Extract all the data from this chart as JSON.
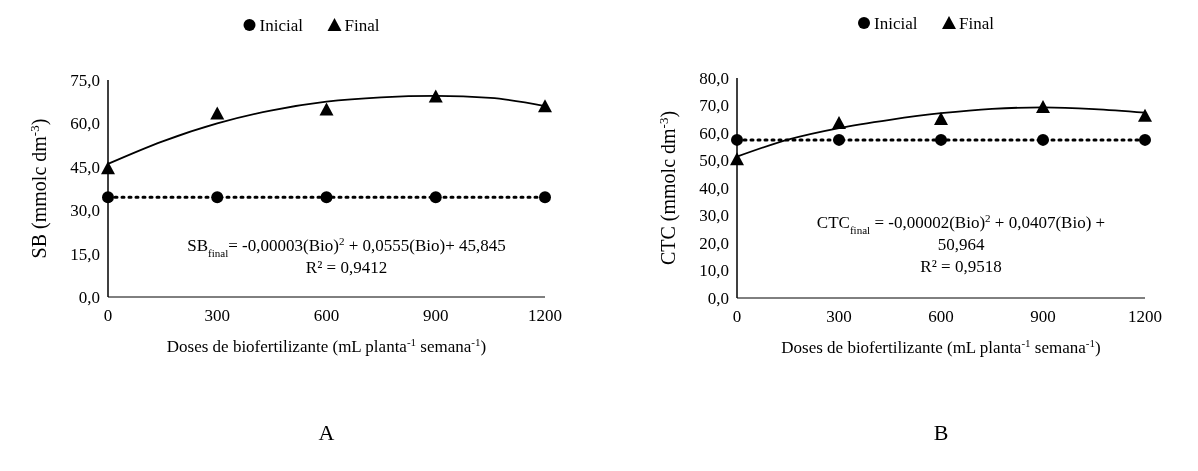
{
  "chart_data": [
    {
      "type": "line",
      "xlabel": "Doses de biofertilizante (mL planta$^{-1}$ semana$^{-1}$)",
      "ylabel": "SB (mmolc dm$^{-3}$)",
      "x": [
        0,
        300,
        600,
        900,
        1200
      ],
      "xlim": [
        0,
        1200
      ],
      "xticks": [
        0,
        300,
        600,
        900,
        1200
      ],
      "ylim": [
        0,
        75
      ],
      "yticks": [
        {
          "value": 0,
          "label": "0,0"
        },
        {
          "value": 15,
          "label": "15,0"
        },
        {
          "value": 30,
          "label": "30,0"
        },
        {
          "value": 45,
          "label": "45,0"
        },
        {
          "value": 60,
          "label": "60,0"
        },
        {
          "value": 75,
          "label": "75,0"
        }
      ],
      "grid": false,
      "legend": "top",
      "series": [
        {
          "name": "Inicial",
          "color": "#000000",
          "marker": "circle",
          "line_style": "dotted",
          "values": [
            34.5,
            34.5,
            34.5,
            34.5,
            34.5
          ]
        },
        {
          "name": "Final",
          "type": "scatter",
          "color": "#000000",
          "marker": "triangle",
          "values": [
            44.5,
            63.4,
            64.8,
            69.3,
            65.9
          ]
        },
        {
          "type": "line",
          "color": "#000000",
          "marker": "none",
          "line_style": "solid",
          "x": [
            0,
            150,
            300,
            450,
            600,
            750,
            900,
            1050,
            1200
          ],
          "values": [
            46,
            53.8,
            60,
            64.5,
            67.5,
            69,
            69.5,
            68.8,
            66
          ]
        }
      ],
      "annotations": [
        "SB$_{final}$= -0,00003(Bio)$^{2}$ + 0,0555(Bio)+ 45,845",
        "R² = 0,9412",
        "A"
      ]
    },
    {
      "type": "line",
      "xlabel": "Doses de biofertilizante (mL planta$^{-1}$ semana$^{-1}$)",
      "ylabel": "CTC (mmolc dm$^{-3}$)",
      "x": [
        0,
        300,
        600,
        900,
        1200
      ],
      "xlim": [
        0,
        1200
      ],
      "xticks": [
        0,
        300,
        600,
        900,
        1200
      ],
      "ylim": [
        0,
        80
      ],
      "yticks": [
        {
          "value": 0,
          "label": "0,0"
        },
        {
          "value": 10,
          "label": "10,0"
        },
        {
          "value": 20,
          "label": "20,0"
        },
        {
          "value": 30,
          "label": "30,0"
        },
        {
          "value": 40,
          "label": "40,0"
        },
        {
          "value": 50,
          "label": "50,0"
        },
        {
          "value": 60,
          "label": "60,0"
        },
        {
          "value": 70,
          "label": "70,0"
        },
        {
          "value": 80,
          "label": "80,0"
        }
      ],
      "grid": false,
      "legend": "top",
      "series": [
        {
          "name": "Inicial",
          "color": "#000000",
          "marker": "circle",
          "line_style": "dotted",
          "values": [
            57.5,
            57.5,
            57.5,
            57.5,
            57.5
          ]
        },
        {
          "name": "Final",
          "type": "scatter",
          "color": "#000000",
          "marker": "triangle",
          "values": [
            50.5,
            63.6,
            65.1,
            69.5,
            66.3
          ]
        },
        {
          "type": "line",
          "color": "#000000",
          "marker": "none",
          "line_style": "solid",
          "x": [
            0,
            150,
            300,
            450,
            600,
            750,
            900,
            1050,
            1200
          ],
          "values": [
            51.4,
            57.6,
            61.8,
            64.8,
            67.2,
            68.8,
            69.3,
            68.7,
            67.4
          ]
        }
      ],
      "annotations": [
        "CTC$_{final}$ = -0,00002(Bio)$^{2}$ + 0,0407(Bio) +",
        "50,964",
        "R² = 0,9518",
        "B"
      ]
    }
  ]
}
